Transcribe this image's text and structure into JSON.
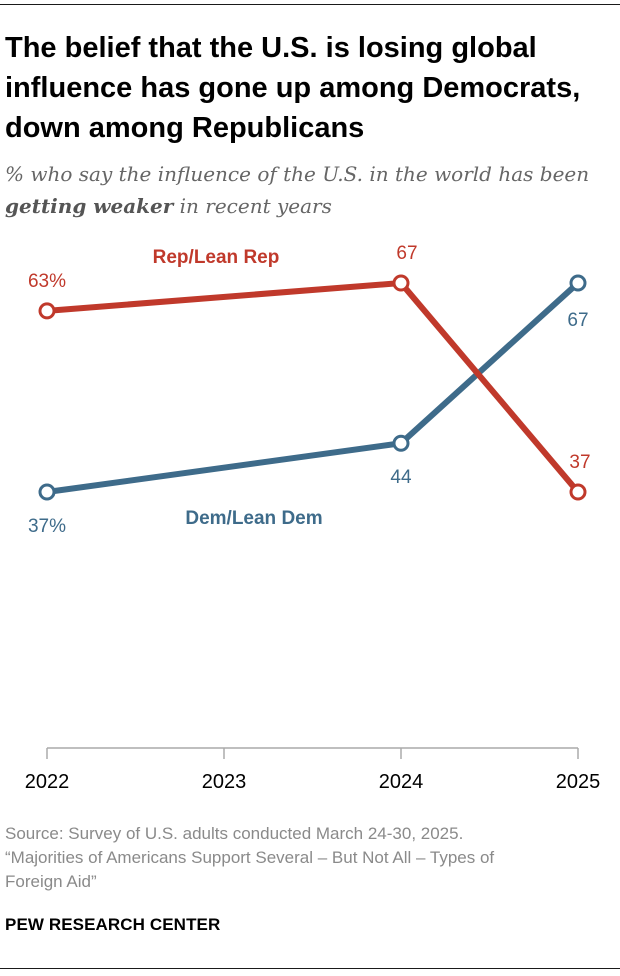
{
  "header": {
    "title": "The belief that the U.S. is losing global influence has gone up among Democrats, down among Republicans",
    "subtitle_pre": "% who say the influence of the U.S. in the world has been ",
    "subtitle_emph": "getting weaker",
    "subtitle_post": " in recent years"
  },
  "colors": {
    "rep": "#c0392b",
    "dem": "#3e6b8a",
    "axis": "#aaaaaa",
    "text": "#000000"
  },
  "chart_data": {
    "type": "line",
    "x": [
      "2022",
      "2023",
      "2024",
      "2025"
    ],
    "ylim": [
      0,
      70
    ],
    "series": [
      {
        "name": "Rep/Lean Rep",
        "color_key": "rep",
        "points": [
          {
            "x": "2022",
            "y": 63,
            "label": "63%"
          },
          {
            "x": "2024",
            "y": 67,
            "label": "67"
          },
          {
            "x": "2025",
            "y": 37,
            "label": "37"
          }
        ]
      },
      {
        "name": "Dem/Lean Dem",
        "color_key": "dem",
        "points": [
          {
            "x": "2022",
            "y": 37,
            "label": "37%"
          },
          {
            "x": "2024",
            "y": 44,
            "label": "44"
          },
          {
            "x": "2025",
            "y": 67,
            "label": "67"
          }
        ]
      }
    ],
    "title": "",
    "xlabel": "",
    "ylabel": ""
  },
  "footer": {
    "source_line1": "Source: Survey of U.S. adults conducted March 24-30, 2025.",
    "source_line2": "“Majorities of Americans Support Several – But Not All – Types of",
    "source_line3": "Foreign Aid”",
    "credit": "PEW RESEARCH CENTER"
  }
}
